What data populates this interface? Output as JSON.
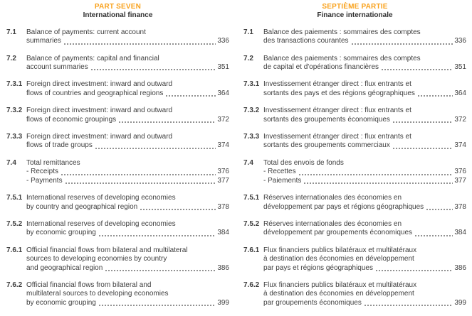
{
  "accent_color": "#F9A11B",
  "left": {
    "part_label": "PART SEVEN",
    "part_title": "International finance",
    "entries": [
      {
        "num": "7.1",
        "lines": [
          "Balance of payments: current account"
        ],
        "items": [
          {
            "text": "summaries",
            "page": "336"
          }
        ]
      },
      {
        "num": "7.2",
        "lines": [
          "Balance of payments: capital and financial"
        ],
        "items": [
          {
            "text": "account summaries",
            "page": "351"
          }
        ]
      },
      {
        "num": "7.3.1",
        "lines": [
          "Foreign direct investment: inward and outward"
        ],
        "items": [
          {
            "text": "flows of countries and geographical regions",
            "page": "364"
          }
        ]
      },
      {
        "num": "7.3.2",
        "lines": [
          "Foreign direct investment: inward and outward"
        ],
        "items": [
          {
            "text": "flows of economic groupings",
            "page": "372"
          }
        ]
      },
      {
        "num": "7.3.3",
        "lines": [
          "Foreign direct investment: inward and outward"
        ],
        "items": [
          {
            "text": "flows of trade groups",
            "page": "374"
          }
        ]
      },
      {
        "num": "7.4",
        "lines": [
          "Total remittances"
        ],
        "items": [
          {
            "text": "- Receipts",
            "page": "376"
          },
          {
            "text": "- Payments",
            "page": "377"
          }
        ]
      },
      {
        "num": "7.5.1",
        "lines": [
          "International reserves of developing economies"
        ],
        "items": [
          {
            "text": "by country and geographical region",
            "page": "378"
          }
        ]
      },
      {
        "num": "7.5.2",
        "lines": [
          "International reserves of developing economies"
        ],
        "items": [
          {
            "text": "by economic grouping",
            "page": "384"
          }
        ]
      },
      {
        "num": "7.6.1",
        "lines": [
          "Official financial flows from bilateral and multilateral",
          "sources to developing economies by country"
        ],
        "items": [
          {
            "text": "and geographical region",
            "page": "386"
          }
        ]
      },
      {
        "num": "7.6.2",
        "lines": [
          "Official financial flows from bilateral and",
          "multilateral sources to developing economies"
        ],
        "items": [
          {
            "text": "by economic grouping",
            "page": "399"
          }
        ]
      }
    ]
  },
  "right": {
    "part_label": "SEPTIÈME PARTIE",
    "part_title": "Finance internationale",
    "entries": [
      {
        "num": "7.1",
        "lines": [
          "Balance des paiements : sommaires des comptes"
        ],
        "items": [
          {
            "text": "des transactions courantes",
            "page": "336"
          }
        ]
      },
      {
        "num": "7.2",
        "lines": [
          "Balance des paiements : sommaires des comptes"
        ],
        "items": [
          {
            "text": "de capital et d'opérations financières",
            "page": "351"
          }
        ]
      },
      {
        "num": "7.3.1",
        "lines": [
          "Investissement étranger direct : flux entrants et"
        ],
        "items": [
          {
            "text": "sortants des pays et des régions géographiques",
            "page": "364"
          }
        ]
      },
      {
        "num": "7.3.2",
        "lines": [
          "Investissement étranger direct : flux entrants et"
        ],
        "items": [
          {
            "text": "sortants des groupements économiques",
            "page": "372"
          }
        ]
      },
      {
        "num": "7.3.3",
        "lines": [
          "Investissement étranger direct : flux entrants et"
        ],
        "items": [
          {
            "text": "sortants des groupements commerciaux",
            "page": "374"
          }
        ]
      },
      {
        "num": "7.4",
        "lines": [
          "Total des envois de fonds"
        ],
        "items": [
          {
            "text": "- Recettes",
            "page": "376"
          },
          {
            "text": "- Paiements",
            "page": "377"
          }
        ]
      },
      {
        "num": "7.5.1",
        "lines": [
          "Réserves internationales des économies en"
        ],
        "items": [
          {
            "text": "développement par pays et régions géographiques",
            "page": "378"
          }
        ]
      },
      {
        "num": "7.5.2",
        "lines": [
          "Réserves internationales des économies en"
        ],
        "items": [
          {
            "text": "développement par groupements économiques",
            "page": "384"
          }
        ]
      },
      {
        "num": "7.6.1",
        "lines": [
          "Flux financiers publics bilatéraux et multilatéraux",
          "à destination des économies en développement"
        ],
        "items": [
          {
            "text": "par pays et régions géographiques",
            "page": "386"
          }
        ]
      },
      {
        "num": "7.6.2",
        "lines": [
          "Flux financiers publics bilatéraux et multilatéraux",
          "à destination des économies en développement"
        ],
        "items": [
          {
            "text": "par groupements économiques",
            "page": "399"
          }
        ]
      }
    ]
  }
}
